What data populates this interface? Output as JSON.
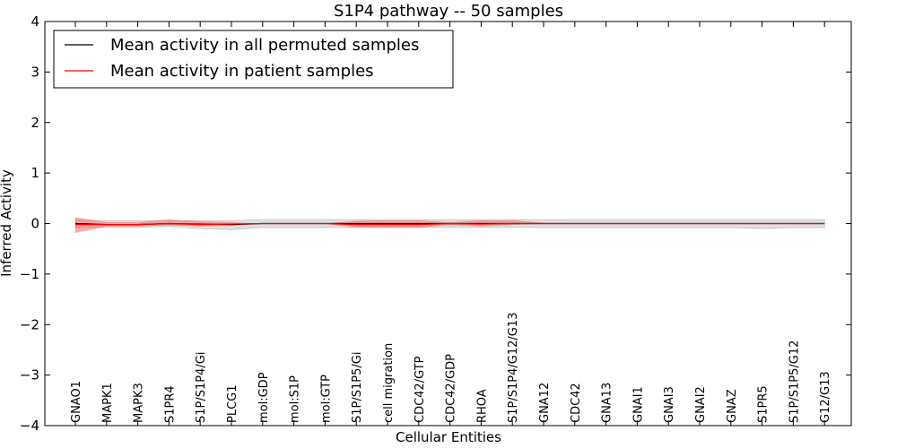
{
  "chart_data": {
    "type": "line",
    "title": "S1P4 pathway -- 50 samples",
    "xlabel": "Cellular Entities",
    "ylabel": "Inferred Activity",
    "ylim": [
      -4,
      4
    ],
    "yticks": [
      4,
      3,
      2,
      1,
      0,
      -1,
      -2,
      -3,
      -4
    ],
    "ytick_labels": [
      "4",
      "3",
      "2",
      "1",
      "0",
      "−1",
      "−2",
      "−3",
      "−4"
    ],
    "categories": [
      "GNAO1",
      "MAPK1",
      "MAPK3",
      "S1PR4",
      "S1P/S1P4/Gi",
      "PLCG1",
      "mol:GDP",
      "mol:S1P",
      "mol:GTP",
      "S1P/S1P5/Gi",
      "cell migration",
      "CDC42/GTP",
      "CDC42/GDP",
      "RHOA",
      "S1P/S1P4/G12/G13",
      "GNA12",
      "CDC42",
      "GNA13",
      "GNAI1",
      "GNAI3",
      "GNAI2",
      "GNAZ",
      "S1PR5",
      "S1P/S1P5/G12",
      "G12/G13"
    ],
    "series": [
      {
        "name": "Mean activity in all permuted samples",
        "color": "#000000",
        "values": [
          0.0,
          -0.02,
          -0.02,
          0.0,
          -0.01,
          -0.02,
          0.0,
          0.0,
          0.0,
          0.0,
          0.0,
          0.0,
          0.0,
          0.0,
          0.0,
          0.0,
          0.0,
          0.0,
          0.0,
          0.0,
          0.0,
          0.0,
          0.0,
          0.0,
          0.0
        ],
        "band_lower": [
          -0.08,
          -0.08,
          -0.08,
          -0.06,
          -0.1,
          -0.12,
          -0.08,
          -0.08,
          -0.08,
          -0.08,
          -0.08,
          -0.08,
          -0.08,
          -0.08,
          -0.08,
          -0.08,
          -0.08,
          -0.08,
          -0.08,
          -0.08,
          -0.08,
          -0.08,
          -0.1,
          -0.08,
          -0.08
        ],
        "band_upper": [
          0.08,
          0.06,
          0.06,
          0.06,
          0.06,
          0.06,
          0.08,
          0.08,
          0.08,
          0.08,
          0.08,
          0.08,
          0.08,
          0.08,
          0.08,
          0.08,
          0.08,
          0.08,
          0.08,
          0.08,
          0.08,
          0.08,
          0.08,
          0.08,
          0.08
        ],
        "band_color": "#bbbbbb"
      },
      {
        "name": "Mean activity in patient samples",
        "color": "#ff0000",
        "values": [
          -0.02,
          -0.02,
          -0.02,
          0.0,
          -0.02,
          -0.01,
          0.0,
          0.0,
          0.0,
          -0.02,
          -0.02,
          -0.02,
          0.0,
          -0.01,
          0.0,
          0.0,
          0.0,
          0.0,
          0.0,
          0.0,
          0.0,
          0.0,
          0.0,
          0.0,
          0.0
        ],
        "band_lower": [
          -0.18,
          -0.05,
          -0.05,
          -0.03,
          -0.05,
          -0.04,
          0.0,
          0.0,
          0.0,
          -0.07,
          -0.08,
          -0.08,
          -0.02,
          -0.05,
          -0.02,
          0.0,
          0.0,
          0.0,
          0.0,
          0.0,
          0.0,
          0.0,
          0.0,
          0.0,
          0.0
        ],
        "band_upper": [
          0.12,
          0.02,
          0.02,
          0.08,
          0.04,
          0.02,
          0.0,
          0.0,
          0.0,
          0.05,
          0.06,
          0.06,
          0.02,
          0.06,
          0.06,
          0.01,
          0.0,
          0.0,
          0.0,
          0.0,
          0.0,
          0.0,
          0.0,
          0.0,
          0.0
        ],
        "band_color": "#ff6666"
      }
    ],
    "legend_position": "top-left",
    "grid": false
  }
}
